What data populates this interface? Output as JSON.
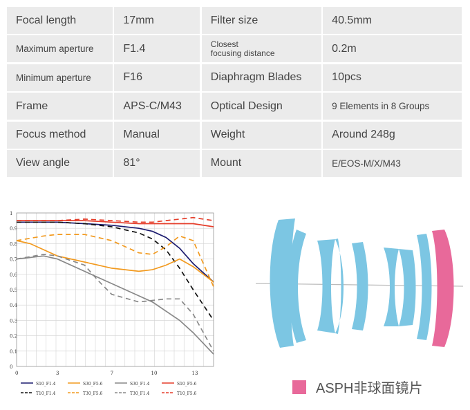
{
  "specs": [
    {
      "label": "Focal length",
      "value": "17mm",
      "label2": "Filter size",
      "value2": "40.5mm"
    },
    {
      "label": "Maximum aperture",
      "value": "F1.4",
      "label2": "Closest",
      "label2b": "focusing distance",
      "value2": "0.2m"
    },
    {
      "label": "Minimum aperture",
      "value": "F16",
      "label2": "Diaphragm Blades",
      "value2": "10pcs"
    },
    {
      "label": "Frame",
      "value": "APS-C/M43",
      "label2": "Optical Design",
      "value2": "9 Elements in 8 Groups"
    },
    {
      "label": "Focus method",
      "value": "Manual",
      "label2": "Weight",
      "value2": "Around 248g"
    },
    {
      "label": "View angle",
      "value": "81°",
      "label2": "Mount",
      "value2": "E/EOS-M/X/M43"
    }
  ],
  "chart_data": {
    "type": "line",
    "x_ticks": [
      "0",
      "3",
      "7",
      "10",
      "13"
    ],
    "y_ticks": [
      "0",
      "0.1",
      "0.2",
      "0.3",
      "0.4",
      "0.5",
      "0.6",
      "0.7",
      "0.8",
      "0.9",
      "1"
    ],
    "xlim": [
      0,
      14.5
    ],
    "ylim": [
      0,
      1
    ],
    "series": [
      {
        "name": "S10_F1.4",
        "color": "#1a1a6e",
        "dash": false,
        "x": [
          0,
          3,
          5,
          7,
          9,
          10,
          11,
          12,
          13,
          14.5
        ],
        "values": [
          0.94,
          0.94,
          0.93,
          0.92,
          0.9,
          0.88,
          0.84,
          0.77,
          0.67,
          0.55
        ]
      },
      {
        "name": "T10_F1.4",
        "color": "#111111",
        "dash": true,
        "x": [
          0,
          3,
          5,
          7,
          9,
          10,
          11,
          12,
          13,
          14.5
        ],
        "values": [
          0.94,
          0.94,
          0.93,
          0.91,
          0.87,
          0.83,
          0.76,
          0.64,
          0.5,
          0.3
        ]
      },
      {
        "name": "S30_F5.6",
        "color": "#f29a1f",
        "dash": false,
        "x": [
          0,
          1,
          3,
          5,
          7,
          9,
          10,
          11,
          12,
          13,
          14.5
        ],
        "values": [
          0.82,
          0.8,
          0.72,
          0.68,
          0.64,
          0.62,
          0.63,
          0.66,
          0.7,
          0.65,
          0.55
        ]
      },
      {
        "name": "T30_F5.6",
        "color": "#f29a1f",
        "dash": true,
        "x": [
          0,
          2,
          3,
          5,
          7,
          9,
          10,
          11,
          12,
          13,
          14.5
        ],
        "values": [
          0.82,
          0.85,
          0.86,
          0.86,
          0.82,
          0.74,
          0.73,
          0.78,
          0.85,
          0.82,
          0.52
        ]
      },
      {
        "name": "S30_F1.4",
        "color": "#888888",
        "dash": false,
        "x": [
          0,
          2,
          3,
          5,
          7,
          9,
          10,
          11,
          12,
          13,
          14.5
        ],
        "values": [
          0.7,
          0.72,
          0.7,
          0.62,
          0.54,
          0.46,
          0.42,
          0.36,
          0.3,
          0.22,
          0.08
        ]
      },
      {
        "name": "T30_F1.4",
        "color": "#888888",
        "dash": true,
        "x": [
          0,
          2,
          3,
          5,
          6,
          7,
          9,
          10,
          11,
          12,
          13,
          14.5
        ],
        "values": [
          0.7,
          0.73,
          0.72,
          0.66,
          0.56,
          0.47,
          0.42,
          0.43,
          0.44,
          0.44,
          0.34,
          0.1
        ]
      },
      {
        "name": "S10_F5.6",
        "color": "#e53d2a",
        "dash": false,
        "x": [
          0,
          3,
          5,
          7,
          9,
          10,
          11,
          12,
          13,
          14.5
        ],
        "values": [
          0.95,
          0.95,
          0.95,
          0.94,
          0.93,
          0.93,
          0.93,
          0.93,
          0.93,
          0.91
        ]
      },
      {
        "name": "T10_F5.6",
        "color": "#e53d2a",
        "dash": true,
        "x": [
          0,
          3,
          5,
          7,
          9,
          10,
          11,
          12,
          13,
          14.5
        ],
        "values": [
          0.95,
          0.95,
          0.96,
          0.95,
          0.94,
          0.94,
          0.95,
          0.96,
          0.97,
          0.95
        ]
      }
    ]
  },
  "legend_aspn": {
    "label": "ASPH非球面镜片",
    "color": "#e8699a"
  }
}
